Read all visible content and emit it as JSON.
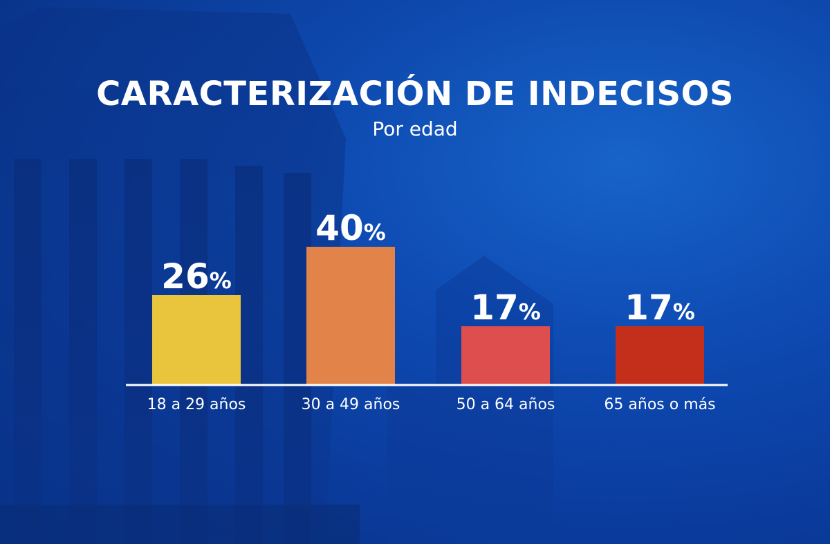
{
  "chart_data": {
    "type": "bar",
    "title": "CARACTERIZACIÓN DE INDECISOS",
    "subtitle": "Por edad",
    "categories": [
      "18 a 29 años",
      "30 a 49 años",
      "50 a 64 años",
      "65 años o más"
    ],
    "values": [
      26,
      40,
      17,
      17
    ],
    "value_labels": [
      "26",
      "40",
      "17",
      "17"
    ],
    "unit": "%",
    "colors": [
      "#e8c53c",
      "#e2834a",
      "#df4e4e",
      "#c42f1c"
    ],
    "ylim": [
      0,
      40
    ],
    "grid": false,
    "xlabel": "",
    "ylabel": ""
  },
  "theme": {
    "text_color": "#ffffff",
    "baseline_color": "#ffffff"
  }
}
